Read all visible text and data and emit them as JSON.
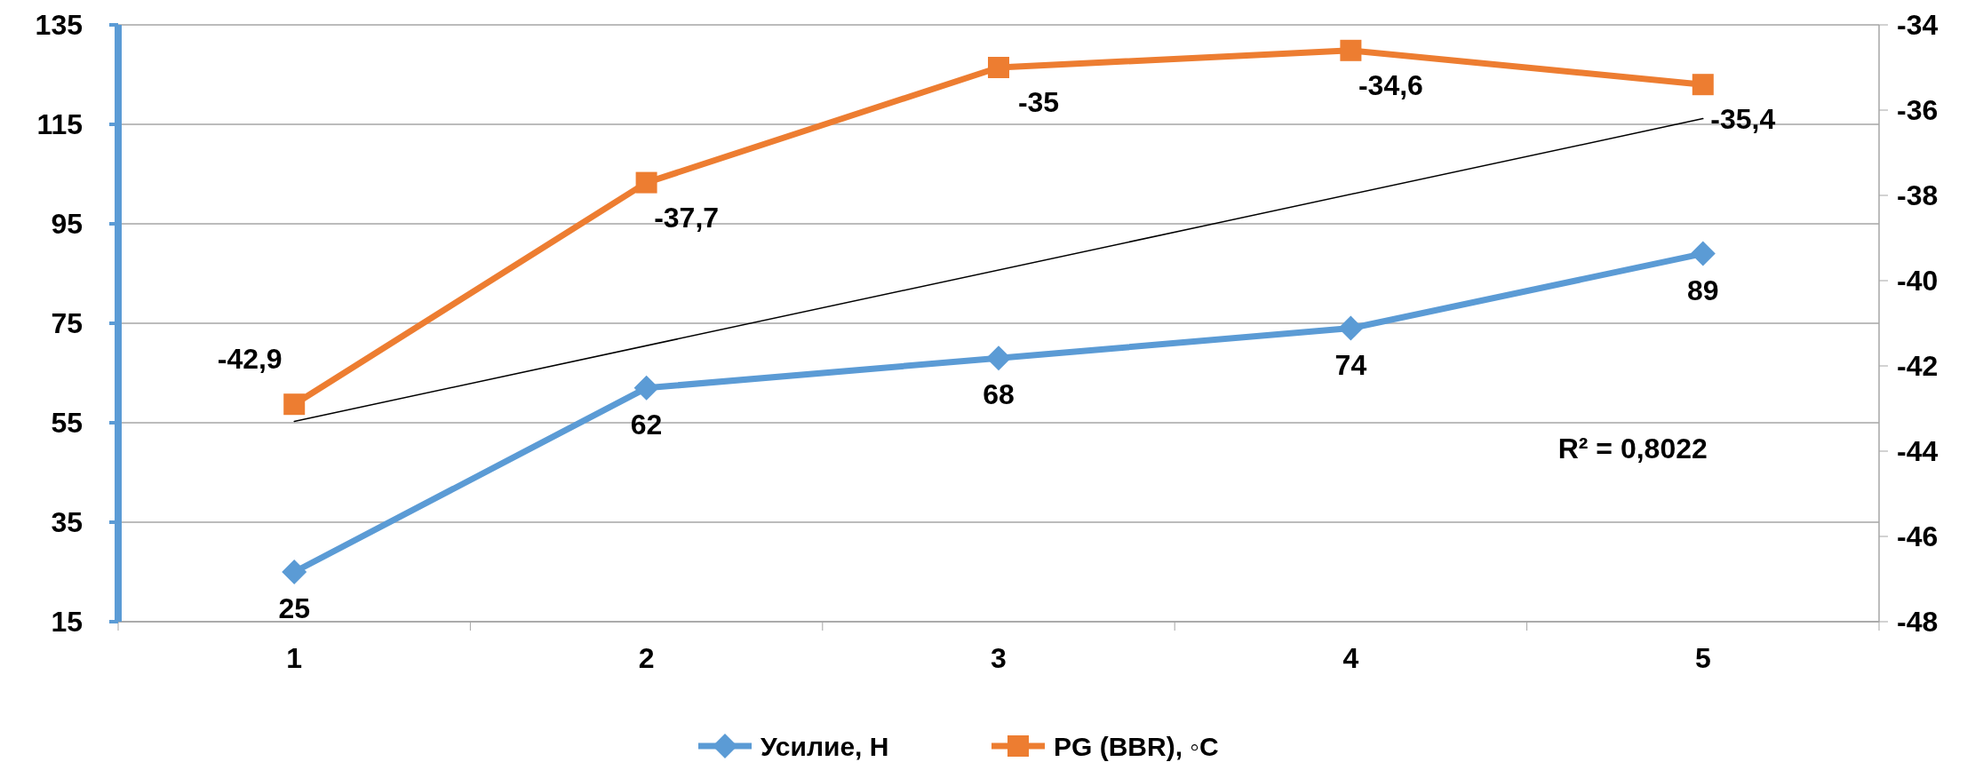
{
  "chart_data": {
    "type": "line",
    "categories": [
      "1",
      "2",
      "3",
      "4",
      "5"
    ],
    "series": [
      {
        "name": "Усилие, Н",
        "color": "#5b9bd5",
        "values": [
          25,
          62,
          68,
          74,
          89
        ],
        "marker": "diamond",
        "value_labels": [
          "25",
          "62",
          "68",
          "74",
          "89"
        ]
      },
      {
        "name": "PG (BBR), ◦C",
        "color": "#ed7d31",
        "values": [
          -42.9,
          -37.7,
          -35,
          -34.6,
          -35.4
        ],
        "axis": "y2",
        "marker": "square",
        "value_labels": [
          "-42,9",
          "-37,7",
          "-35",
          "-34,6",
          "-35,4"
        ]
      },
      {
        "type": "line",
        "color": "#000000",
        "x": [
          "1",
          "5"
        ],
        "values": [
          -43.3,
          -36.2
        ],
        "axis": "y2",
        "marker": "none"
      }
    ],
    "ylim": [
      15,
      135
    ],
    "yticks": [
      15,
      35,
      55,
      75,
      95,
      115,
      135
    ],
    "y2lim": [
      -48,
      -34
    ],
    "y2ticks": [
      -48,
      -46,
      -44,
      -42,
      -40,
      -38,
      -36,
      -34
    ],
    "annotations": [
      "R² = 0,8022"
    ],
    "grid": "y",
    "legend": "bottom"
  }
}
